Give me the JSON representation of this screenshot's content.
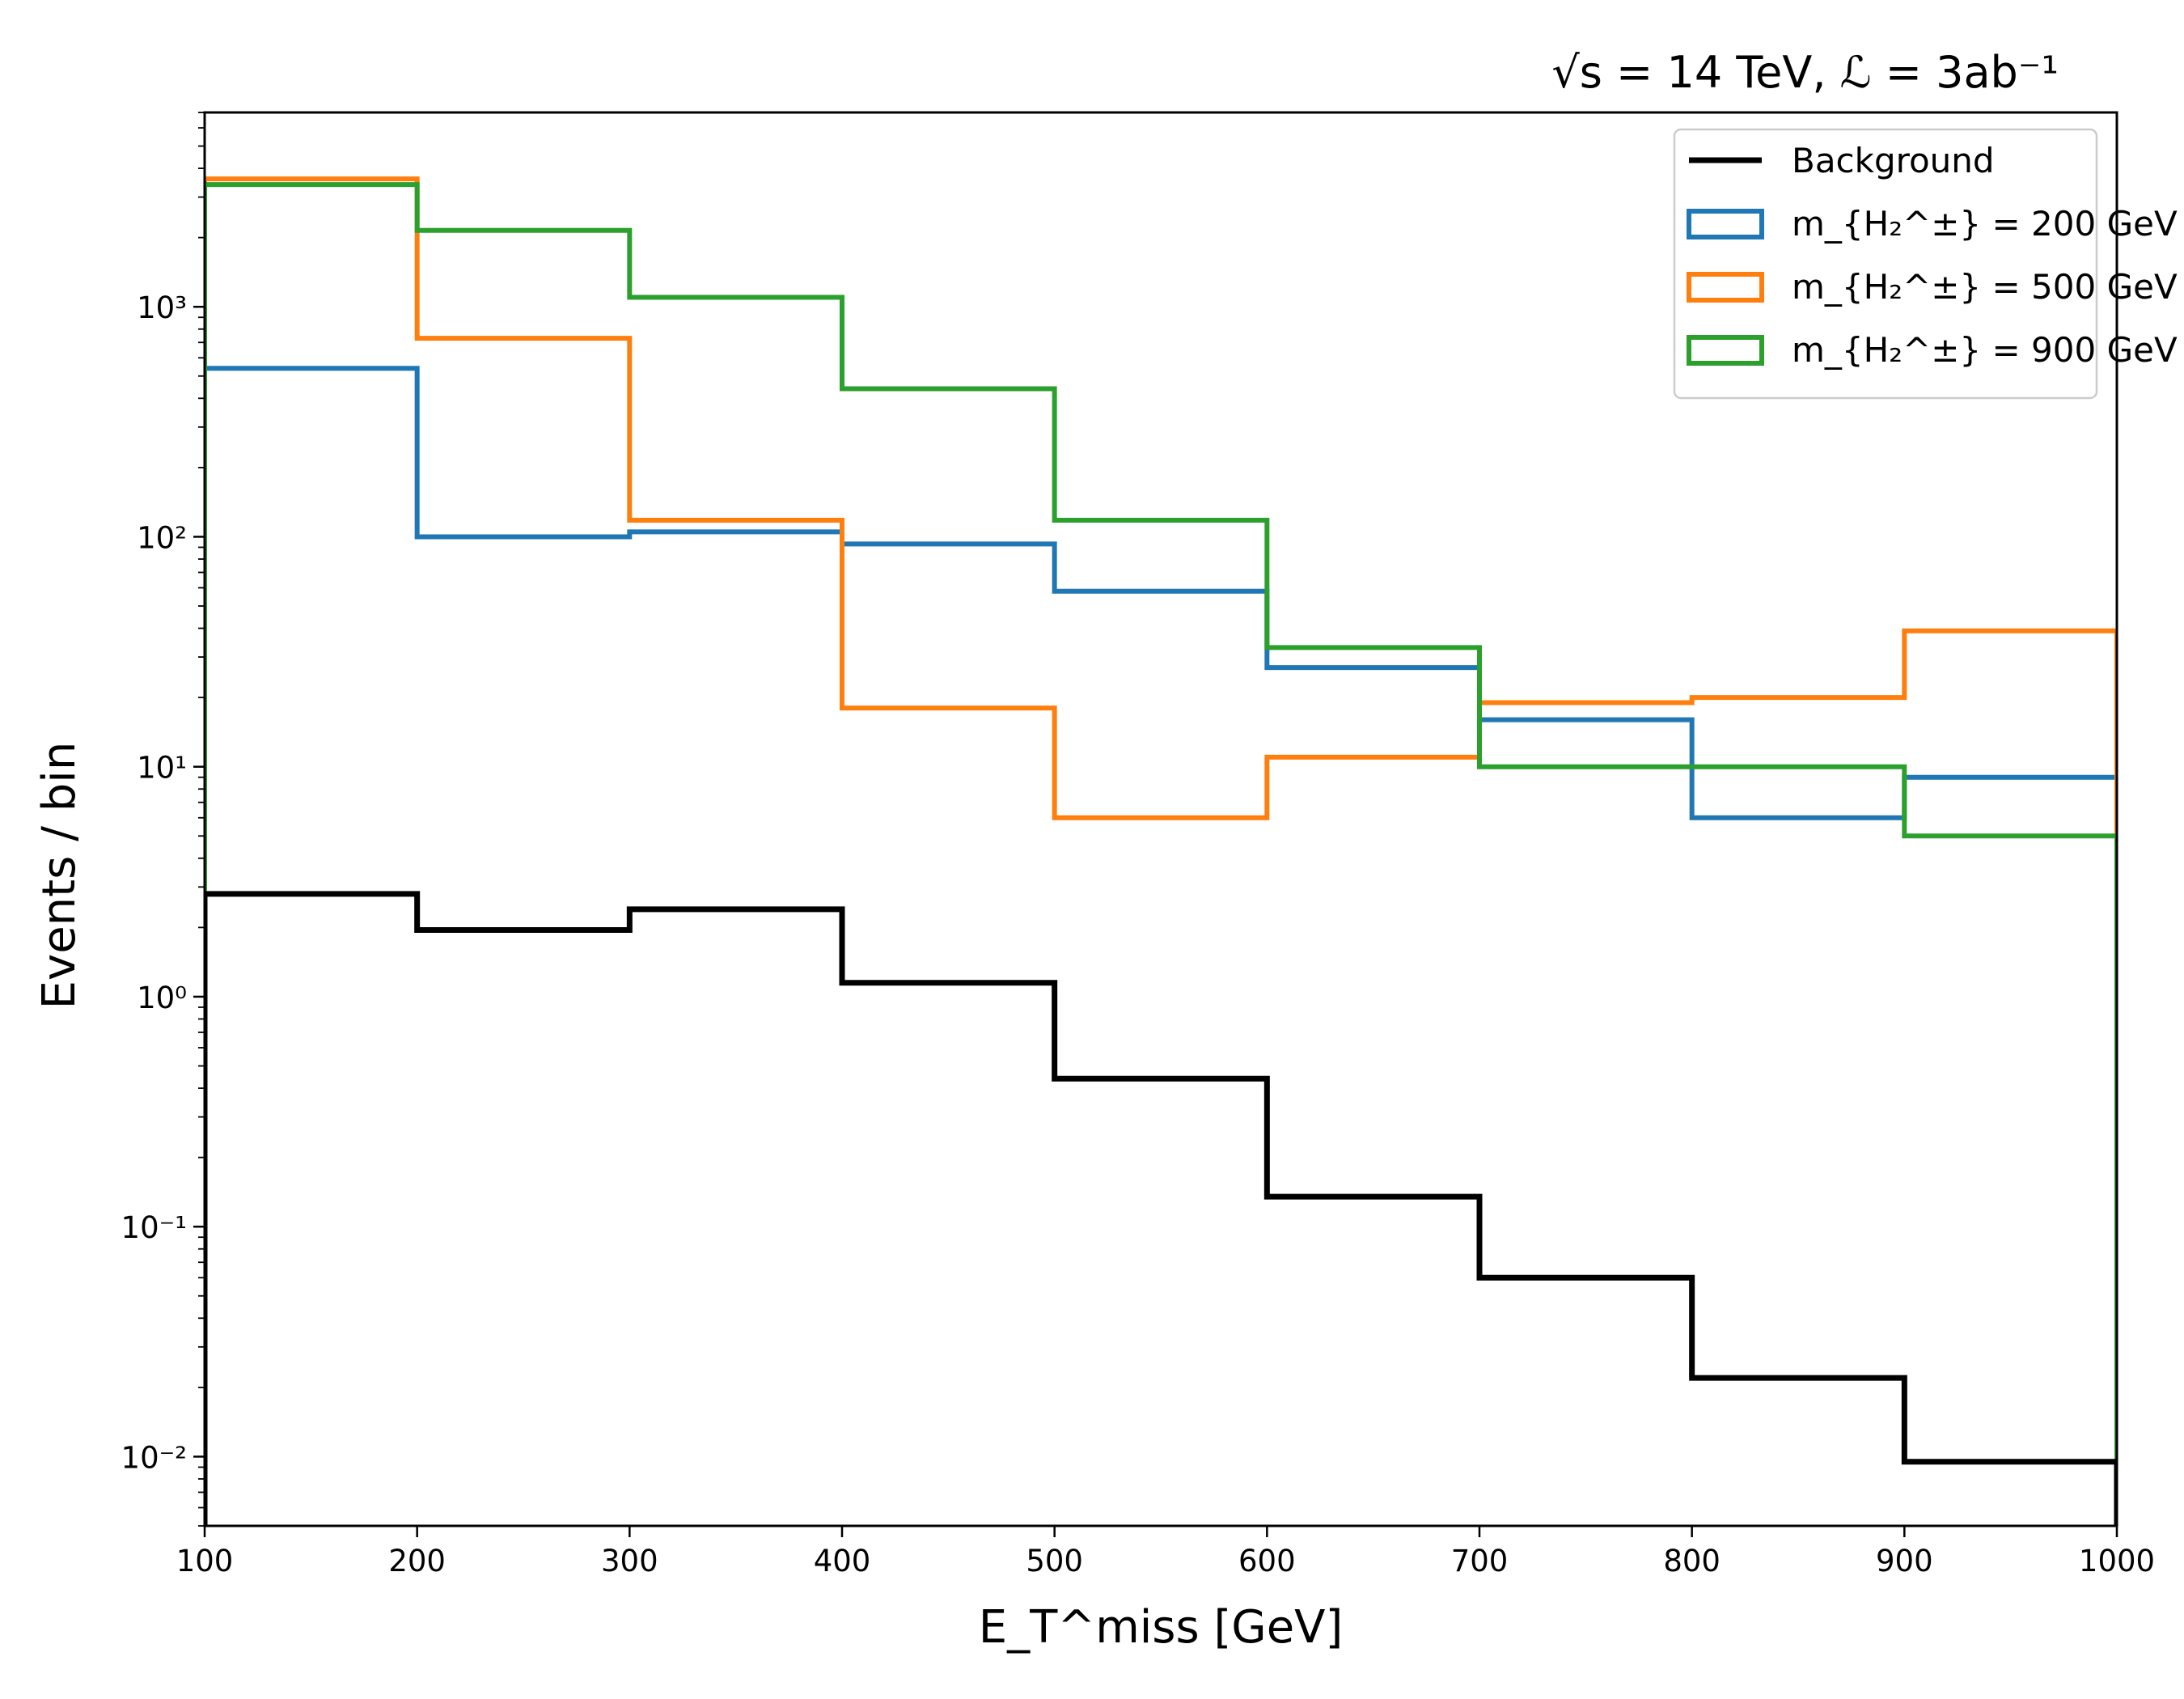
{
  "chart_data": {
    "type": "step",
    "title": "√s = 14 TeV, ℒ = 3ab⁻¹",
    "xlabel": "E_T^miss [GeV]",
    "ylabel": "Events / bin",
    "xlim": [
      100,
      1000
    ],
    "ylim": [
      0.005,
      7000
    ],
    "yscale": "log",
    "xticks": [
      100,
      200,
      300,
      400,
      500,
      600,
      700,
      800,
      900,
      1000
    ],
    "yticks": [
      {
        "exp": -2,
        "label": "10⁻²"
      },
      {
        "exp": -1,
        "label": "10⁻¹"
      },
      {
        "exp": 0,
        "label": "10⁰"
      },
      {
        "exp": 1,
        "label": "10¹"
      },
      {
        "exp": 2,
        "label": "10²"
      },
      {
        "exp": 3,
        "label": "10³"
      }
    ],
    "bin_edges": [
      100,
      200,
      300,
      400,
      500,
      600,
      700,
      800,
      900,
      1000
    ],
    "legend_position": "upper right",
    "series": [
      {
        "name": "Background",
        "legend_label": "Background",
        "color": "#000000",
        "values": [
          2.8,
          1.95,
          2.4,
          1.15,
          0.44,
          0.135,
          0.06,
          0.022,
          0.0095
        ]
      },
      {
        "name": "m_H2± = 200 GeV",
        "legend_label": "m_{H₂^±} = 200 GeV",
        "color": "#1f77b4",
        "values": [
          540,
          100,
          105,
          93,
          58,
          27,
          16,
          6,
          9
        ]
      },
      {
        "name": "m_H2± = 500 GeV",
        "legend_label": "m_{H₂^±} = 500 GeV",
        "color": "#ff7f0e",
        "values": [
          3600,
          730,
          118,
          18,
          6,
          11,
          19,
          20,
          39
        ]
      },
      {
        "name": "m_H2± = 900 GeV",
        "legend_label": "m_{H₂^±} = 900 GeV",
        "color": "#2ca02c",
        "values": [
          3400,
          2150,
          1100,
          440,
          118,
          33,
          10,
          10,
          5
        ]
      }
    ]
  }
}
